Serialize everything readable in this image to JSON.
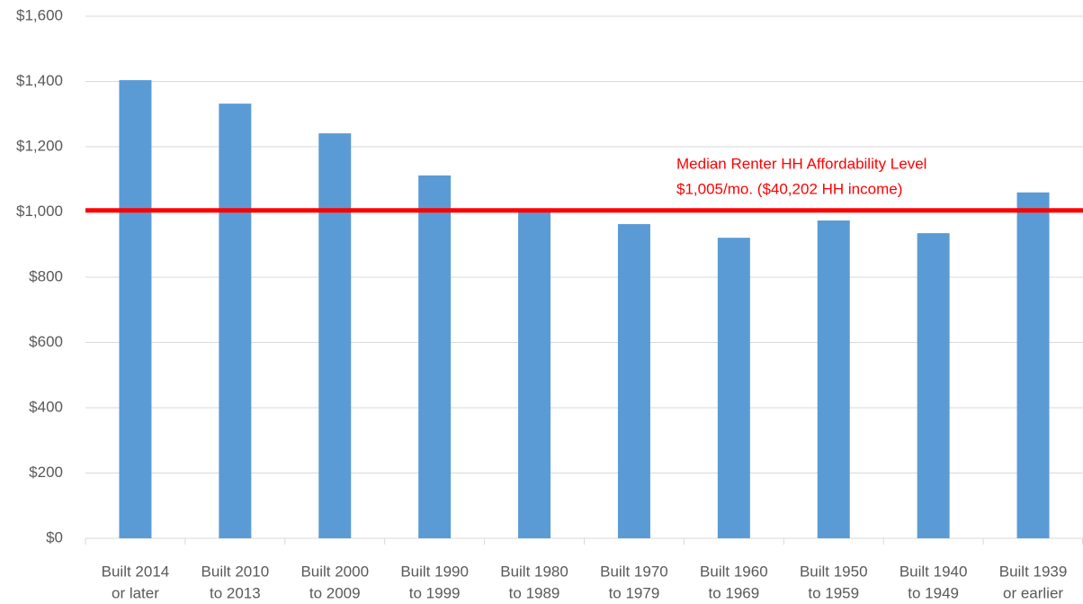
{
  "chart_data": {
    "type": "bar",
    "categories": [
      [
        "Built 2014",
        "or later"
      ],
      [
        "Built 2010",
        "to 2013"
      ],
      [
        "Built 2000",
        "to 2009"
      ],
      [
        "Built 1990",
        "to 1999"
      ],
      [
        "Built 1980",
        "to 1989"
      ],
      [
        "Built 1970",
        "to 1979"
      ],
      [
        "Built 1960",
        "to 1969"
      ],
      [
        "Built 1950",
        "to 1959"
      ],
      [
        "Built 1940",
        "to 1949"
      ],
      [
        "Built 1939",
        "or earlier"
      ]
    ],
    "values": [
      1404,
      1332,
      1241,
      1112,
      1007,
      963,
      921,
      974,
      935,
      1060
    ],
    "color": "#5b9bd5",
    "ylim": [
      0,
      1600
    ],
    "yticks": [
      {
        "value": 0,
        "label": "$0"
      },
      {
        "value": 200,
        "label": "$200"
      },
      {
        "value": 400,
        "label": "$400"
      },
      {
        "value": 600,
        "label": "$600"
      },
      {
        "value": 800,
        "label": "$800"
      },
      {
        "value": 1000,
        "label": "$1,000"
      },
      {
        "value": 1200,
        "label": "$1,200"
      },
      {
        "value": 1400,
        "label": "$1,400"
      },
      {
        "value": 1600,
        "label": "$1,600"
      }
    ],
    "grid": true,
    "reference_line": {
      "value": 1005,
      "color": "#ff0000"
    },
    "annotation": [
      "Median Renter HH Affordability Level",
      "$1,005/mo. ($40,202 HH income)"
    ]
  }
}
